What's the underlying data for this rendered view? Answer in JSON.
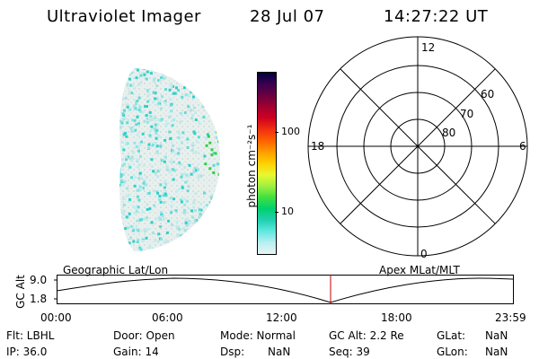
{
  "header": {
    "title": "Ultraviolet Imager",
    "date": "28 Jul 07",
    "time": "14:27:22 UT"
  },
  "colorbar": {
    "unit_label": "photon cm⁻²s⁻¹",
    "tick_labels": [
      "100",
      "10"
    ],
    "colors": [
      "#000040",
      "#3a0050",
      "#6a0040",
      "#a00030",
      "#d00020",
      "#f03010",
      "#ff6000",
      "#ff9d00",
      "#ffd000",
      "#e8f830",
      "#a0f040",
      "#40e040",
      "#00d070",
      "#20d0b0",
      "#60e8e0",
      "#b8f0f0",
      "#e8f4f4"
    ]
  },
  "polar_plot": {
    "labels_top": "12",
    "labels_left": "18",
    "labels_right": "6",
    "labels_bottom": "0",
    "lat_labels": [
      "60",
      "70",
      "80"
    ]
  },
  "timeline": {
    "left_label": "Geographic Lat/Lon",
    "right_label": "Apex  MLat/MLT",
    "y_axis_label": "GC Alt",
    "y_ticks": [
      "9.0",
      "1.8"
    ],
    "x_ticks": [
      "00:00",
      "06:00",
      "12:00",
      "18:00",
      "23:59"
    ],
    "marker_color": "#c00000"
  },
  "info": {
    "flt": "Flt: LBHL",
    "door": "Door: Open",
    "mode": "Mode: Normal",
    "gc_alt": "GC Alt: 2.2 Re",
    "glat_label": "GLat:",
    "glat_value": "NaN",
    "ip": "IP: 36.0",
    "gain": "Gain: 14",
    "dsp_label": "Dsp:",
    "dsp_value": "NaN",
    "seq": "Seq: 39",
    "glon_label": "GLon:",
    "glon_value": "NaN"
  }
}
